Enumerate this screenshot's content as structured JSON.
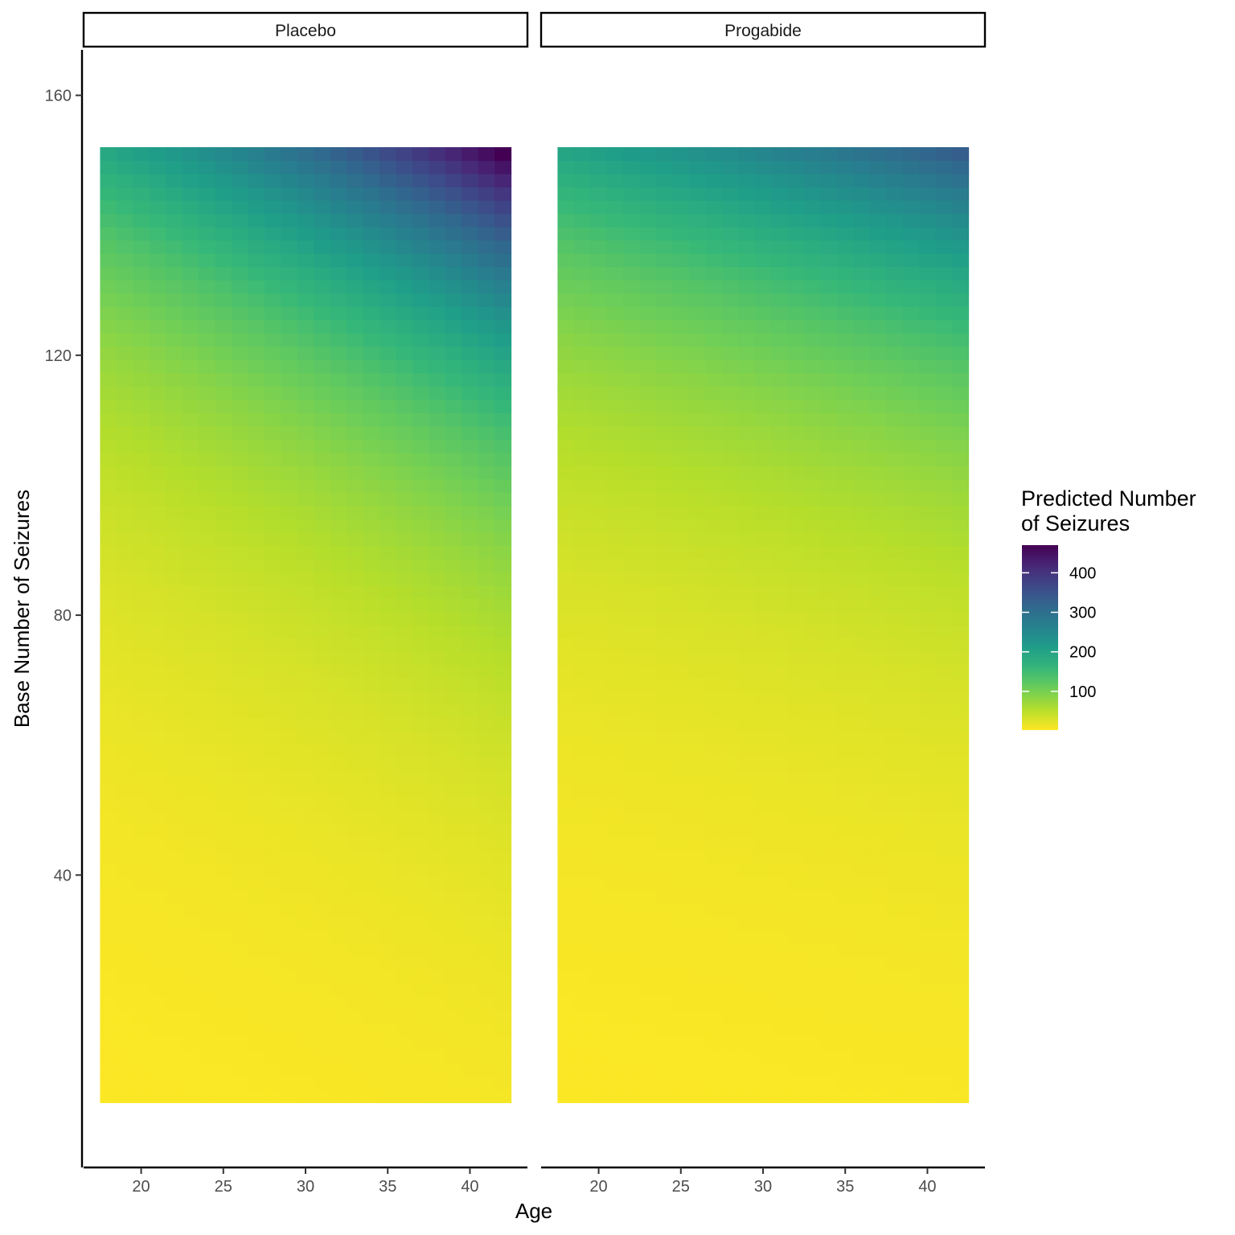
{
  "chart_data": {
    "type": "heatmap",
    "x_var": "Age",
    "y_var": "Base Number of Seizures",
    "xlabel": "Age",
    "ylabel": "Base Number of Seizures",
    "x_ticks": [
      20,
      25,
      30,
      35,
      40
    ],
    "y_ticks": [
      40,
      80,
      120,
      160
    ],
    "xlim": [
      16.5,
      43.5
    ],
    "ylim": [
      -5,
      167
    ],
    "x_range": [
      18,
      42
    ],
    "y_range": [
      6,
      151
    ],
    "facets": [
      {
        "label": "Placebo",
        "corner_values": {
          "x18_y6": 3,
          "x42_y6": 8,
          "x18_y151": 190,
          "x42_y151": 470
        }
      },
      {
        "label": "Progabide",
        "corner_values": {
          "x18_y6": 3,
          "x42_y6": 5,
          "x18_y151": 195,
          "x42_y151": 330
        }
      }
    ],
    "legend": {
      "title_lines": [
        "Predicted Number",
        "of Seizures"
      ],
      "breaks": [
        100,
        200,
        300,
        400
      ],
      "range": [
        2,
        470
      ],
      "position": "right",
      "palette": "viridis",
      "direction": "reversed"
    },
    "grid": false,
    "colors": {
      "viridis": [
        "#440154",
        "#482777",
        "#3e4989",
        "#31688e",
        "#26828e",
        "#1f9e89",
        "#35b779",
        "#6ece58",
        "#b5de2b",
        "#fde725"
      ]
    }
  }
}
